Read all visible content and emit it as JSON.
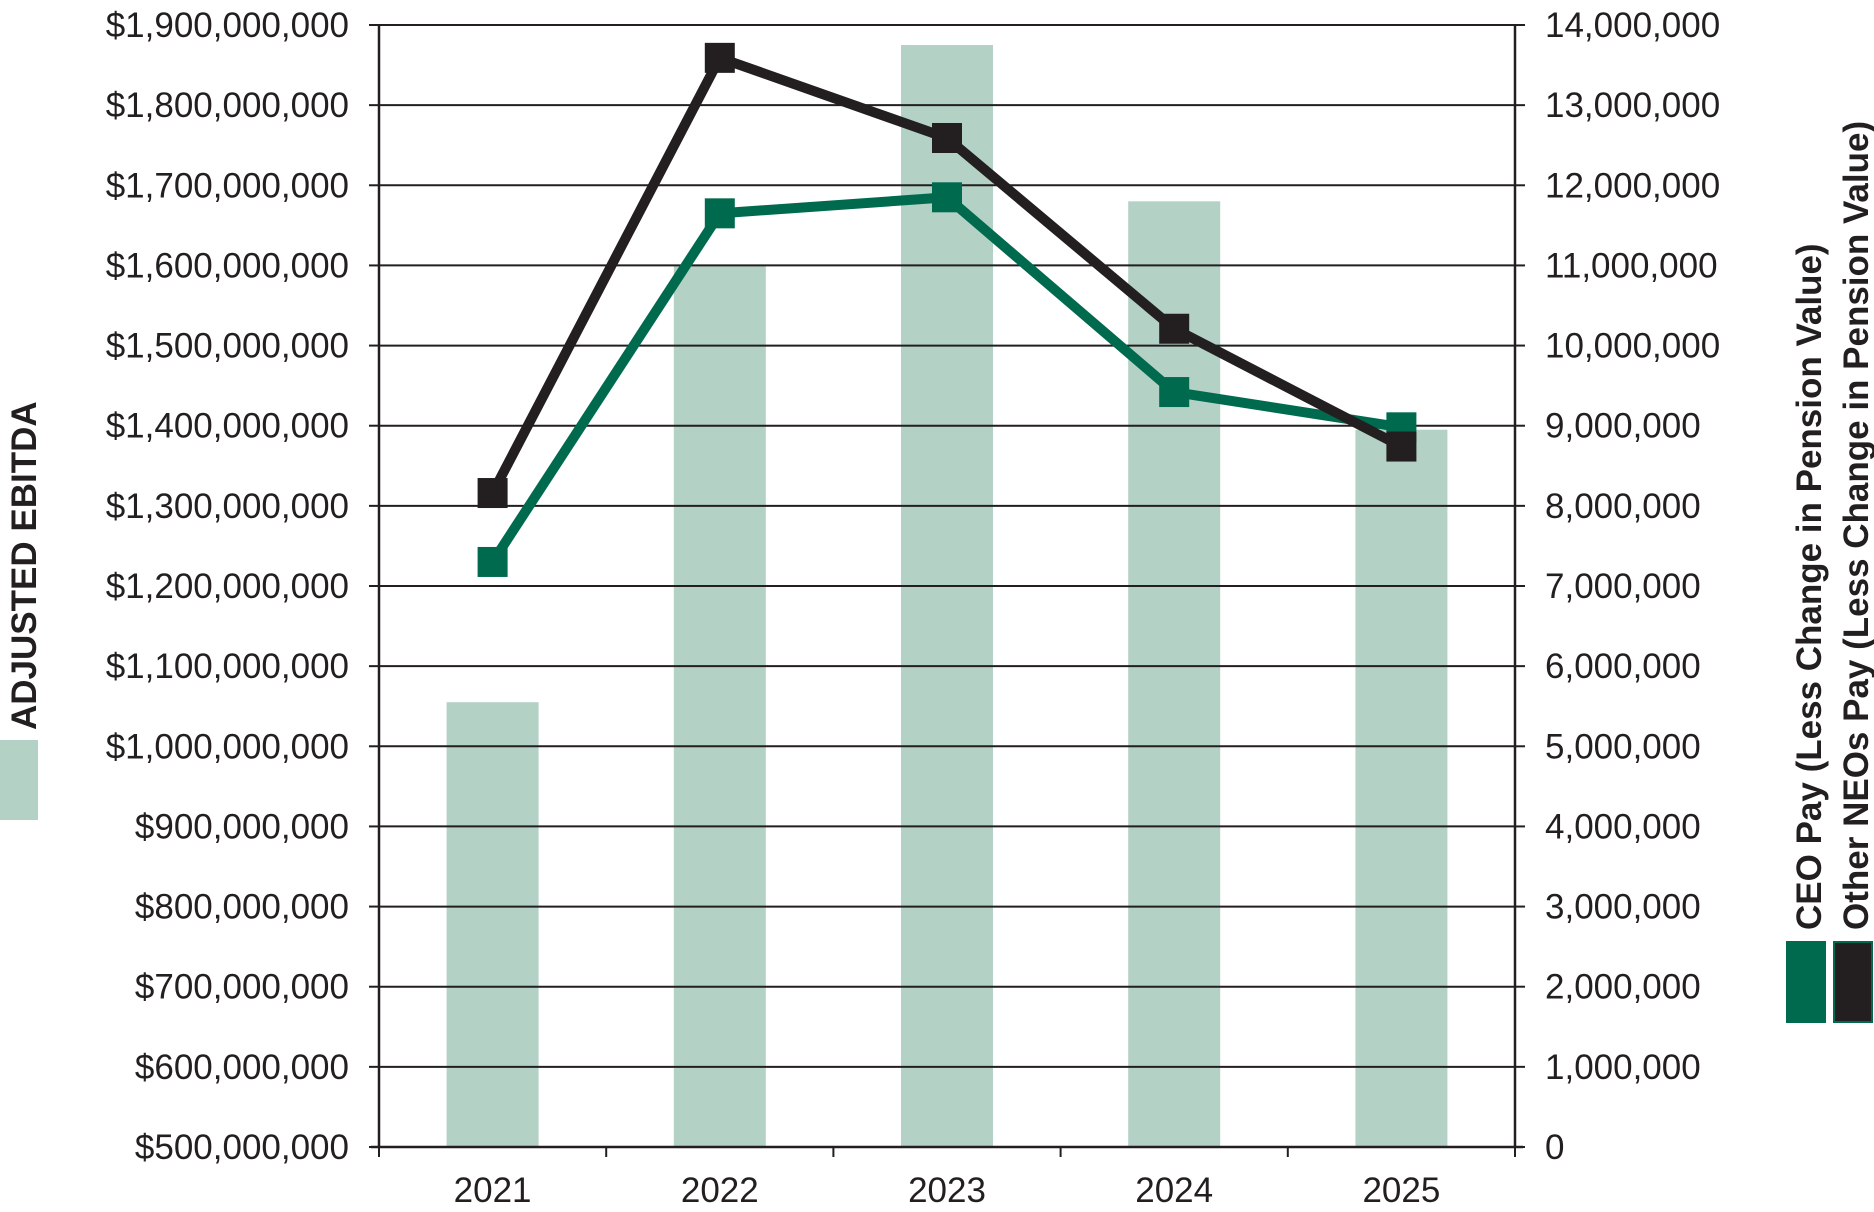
{
  "chart_data": {
    "type": "bar",
    "categories": [
      "2021",
      "2022",
      "2023",
      "2024",
      "2025"
    ],
    "y_left": {
      "min": 500000000,
      "max": 1900000000,
      "step": 100000000,
      "tick_labels": [
        "$500,000,000",
        "$600,000,000",
        "$700,000,000",
        "$800,000,000",
        "$900,000,000",
        "$1,000,000,000",
        "$1,100,000,000",
        "$1,200,000,000",
        "$1,300,000,000",
        "$1,400,000,000",
        "$1,500,000,000",
        "$1,600,000,000",
        "$1,700,000,000",
        "$1,800,000,000",
        "$1,900,000,000"
      ]
    },
    "y_right": {
      "min": 0,
      "max": 14000000,
      "step": 1000000,
      "tick_labels": [
        "0",
        "1,000,000",
        "2,000,000",
        "3,000,000",
        "4,000,000",
        "5,000,000",
        "6,000,000",
        "7,000,000",
        "8,000,000",
        "9,000,000",
        "10,000,000",
        "11,000,000",
        "12,000,000",
        "13,000,000",
        "14,000,000"
      ]
    },
    "series": [
      {
        "name": "ADJUSTED EBITDA",
        "kind": "bar",
        "axis": "left",
        "color": "#b3d1c4",
        "values": [
          1055000000,
          1600000000,
          1875000000,
          1680000000,
          1395000000
        ]
      },
      {
        "name": "CEO Pay (Less Change in Pension Value)",
        "kind": "line",
        "axis": "right",
        "color": "#006a4e",
        "values": [
          7300000,
          11650000,
          11850000,
          9420000,
          8980000
        ]
      },
      {
        "name": "Other NEOs Pay (Less Change in Pension Value)",
        "kind": "line",
        "axis": "right",
        "color": "#231f20",
        "values": [
          8160000,
          13590000,
          12590000,
          10210000,
          8740000
        ]
      }
    ],
    "grid": true,
    "legend": "left and right, vertical"
  }
}
